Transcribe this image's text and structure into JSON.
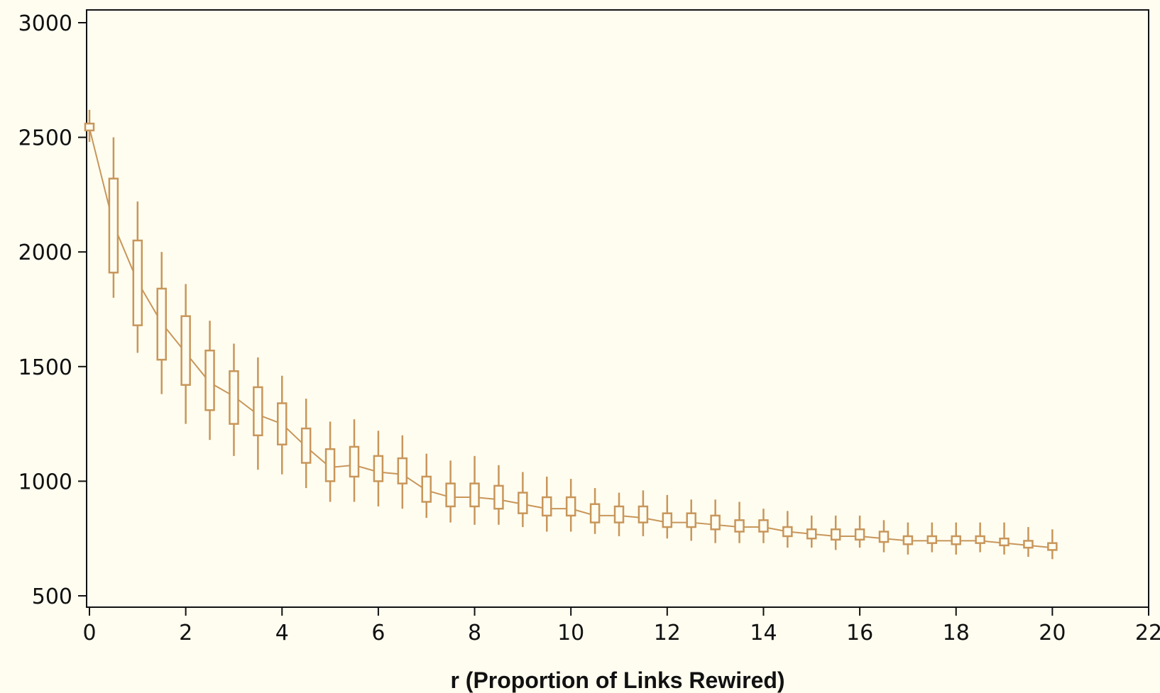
{
  "colors": {
    "background": "#fffdf0",
    "series": "#c8965a",
    "axis": "#111111"
  },
  "chart_data": {
    "type": "box-line",
    "title": "",
    "xlabel": "r (Proportion of Links Rewired)",
    "ylabel": "",
    "xlim": [
      0,
      22
    ],
    "ylim": [
      500,
      3000
    ],
    "xticks": [
      0,
      2,
      4,
      6,
      8,
      10,
      12,
      14,
      16,
      18,
      20,
      22
    ],
    "yticks": [
      500,
      1000,
      1500,
      2000,
      2500,
      3000
    ],
    "grid": false,
    "legend": "none",
    "series": [
      {
        "x": [
          0,
          0.5,
          1,
          1.5,
          2,
          2.5,
          3,
          3.5,
          4,
          4.5,
          5,
          5.5,
          6,
          6.5,
          7,
          7.5,
          8,
          8.5,
          9,
          9.5,
          10,
          10.5,
          11,
          11.5,
          12,
          12.5,
          13,
          13.5,
          14,
          14.5,
          15,
          15.5,
          16,
          16.5,
          17,
          17.5,
          18,
          18.5,
          19,
          19.5,
          20
        ],
        "mean": [
          2540,
          2120,
          1870,
          1690,
          1560,
          1430,
          1370,
          1290,
          1250,
          1150,
          1060,
          1070,
          1040,
          1030,
          960,
          930,
          930,
          920,
          900,
          880,
          880,
          850,
          850,
          840,
          820,
          820,
          810,
          800,
          800,
          780,
          770,
          760,
          760,
          750,
          740,
          740,
          740,
          740,
          730,
          720,
          710
        ],
        "q1": [
          2530,
          1910,
          1680,
          1530,
          1420,
          1310,
          1250,
          1200,
          1160,
          1080,
          1000,
          1020,
          1000,
          990,
          910,
          890,
          890,
          880,
          860,
          850,
          850,
          820,
          820,
          820,
          800,
          800,
          790,
          780,
          780,
          760,
          750,
          745,
          745,
          735,
          725,
          730,
          725,
          730,
          720,
          710,
          700
        ],
        "q3": [
          2560,
          2320,
          2050,
          1840,
          1720,
          1570,
          1480,
          1410,
          1340,
          1230,
          1140,
          1150,
          1110,
          1100,
          1020,
          990,
          990,
          980,
          950,
          930,
          930,
          900,
          890,
          890,
          860,
          860,
          850,
          830,
          830,
          800,
          790,
          790,
          790,
          780,
          760,
          760,
          760,
          760,
          750,
          740,
          730
        ],
        "low": [
          2480,
          1800,
          1560,
          1380,
          1250,
          1180,
          1110,
          1050,
          1030,
          970,
          910,
          910,
          890,
          880,
          840,
          820,
          810,
          810,
          800,
          780,
          780,
          770,
          760,
          760,
          750,
          740,
          730,
          730,
          730,
          710,
          710,
          700,
          710,
          690,
          680,
          690,
          680,
          690,
          680,
          670,
          660
        ],
        "high": [
          2620,
          2500,
          2220,
          2000,
          1860,
          1700,
          1600,
          1540,
          1460,
          1360,
          1260,
          1270,
          1220,
          1200,
          1120,
          1090,
          1110,
          1070,
          1040,
          1020,
          1010,
          970,
          950,
          960,
          940,
          920,
          920,
          910,
          880,
          870,
          850,
          850,
          850,
          830,
          820,
          820,
          820,
          820,
          820,
          800,
          790
        ]
      }
    ]
  }
}
